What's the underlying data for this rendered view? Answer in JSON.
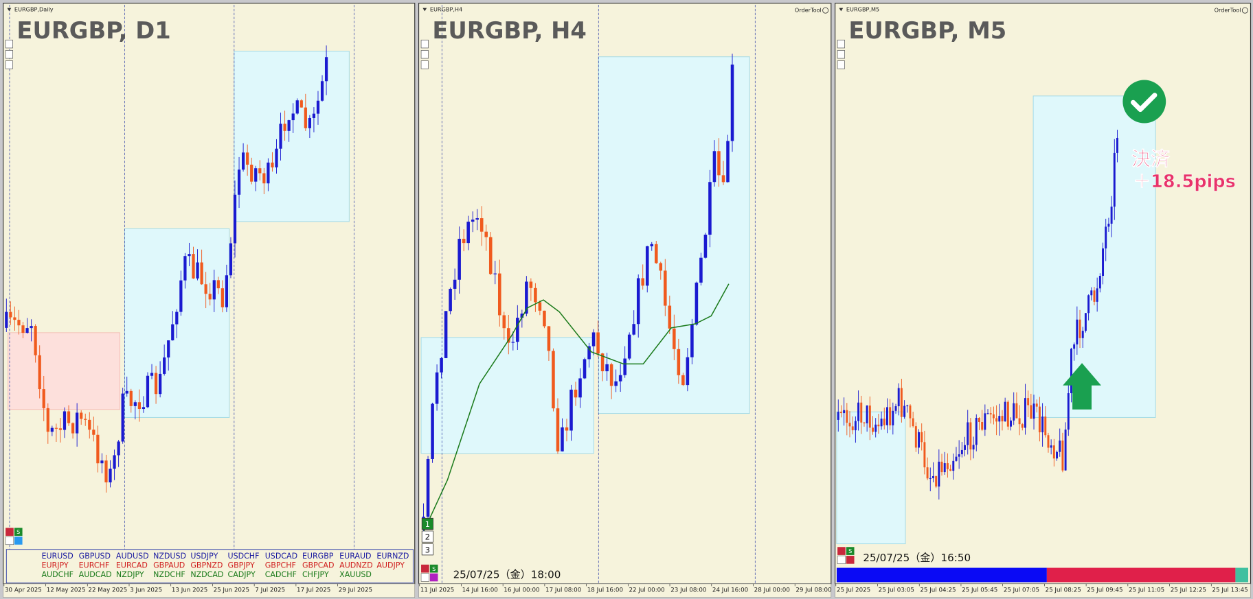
{
  "panels": [
    {
      "label": "EURGBP,Daily",
      "title": "EURGBP, D1",
      "s_button": "S",
      "x_labels": [
        "30 Apr 2025",
        "12 May 2025",
        "22 May 2025",
        "3 Jun 2025",
        "13 Jun 2025",
        "25 Jun 2025",
        "7 Jul 2025",
        "17 Jul 2025",
        "29 Jul 2025"
      ],
      "symbols": [
        [
          "EURUSD",
          "GBPUSD",
          "AUDUSD",
          "NZDUSD",
          "USDJPY",
          "USDCHF",
          "USDCAD",
          "EURGBP",
          "EURAUD",
          "EURNZD"
        ],
        [
          "EURJPY",
          "EURCHF",
          "EURCAD",
          "GBPAUD",
          "GBPNZD",
          "GBPJPY",
          "GBPCHF",
          "GBPCAD",
          "AUDNZD",
          "AUDJPY"
        ],
        [
          "AUDCHF",
          "AUDCAD",
          "NZDJPY",
          "NZDCHF",
          "NZDCAD",
          "CADJPY",
          "CADCHF",
          "CHFJPY",
          "XAUUSD"
        ]
      ]
    },
    {
      "label": "EURGBP,H4",
      "title": "EURGBP, H4",
      "tool": "OrderTool",
      "s_button": "S",
      "timestamp": "25/07/25（金）18:00",
      "buttons": [
        "1",
        "2",
        "3"
      ],
      "x_labels": [
        "11 Jul 2025",
        "14 Jul 16:00",
        "16 Jul 00:00",
        "17 Jul 08:00",
        "18 Jul 16:00",
        "22 Jul 00:00",
        "23 Jul 08:00",
        "24 Jul 16:00",
        "28 Jul 00:00",
        "29 Jul 08:00"
      ]
    },
    {
      "label": "EURGBP,M5",
      "title": "EURGBP, M5",
      "tool": "OrderTool",
      "s_button": "S",
      "timestamp": "25/07/25（金）16:50",
      "annotation": [
        "決済",
        "＋18.5pips"
      ],
      "x_labels": [
        "25 Jul 2025",
        "25 Jul 03:05",
        "25 Jul 04:25",
        "25 Jul 05:45",
        "25 Jul 07:05",
        "25 Jul 08:25",
        "25 Jul 09:45",
        "25 Jul 11:05",
        "25 Jul 12:25",
        "25 Jul 13:45"
      ]
    }
  ]
}
